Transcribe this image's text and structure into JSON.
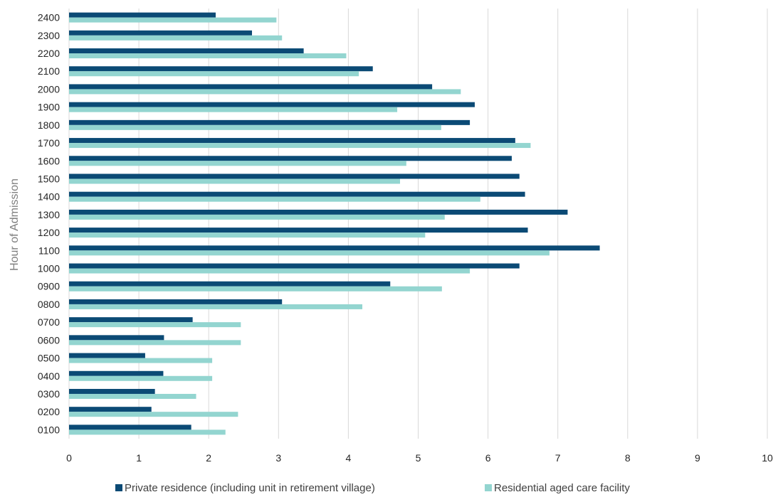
{
  "chart_data": {
    "type": "bar",
    "orientation": "horizontal",
    "title": "",
    "xlabel": "",
    "ylabel": "Hour of Admission",
    "xlim": [
      0,
      10
    ],
    "x_ticks": [
      "0",
      "1",
      "2",
      "3",
      "4",
      "5",
      "6",
      "7",
      "8",
      "9",
      "10"
    ],
    "grid": true,
    "legend_position": "bottom",
    "categories": [
      "0100",
      "0200",
      "0300",
      "0400",
      "0500",
      "0600",
      "0700",
      "0800",
      "0900",
      "1000",
      "1100",
      "1200",
      "1300",
      "1400",
      "1500",
      "1600",
      "1700",
      "1800",
      "1900",
      "2000",
      "2100",
      "2200",
      "2300",
      "2400"
    ],
    "series": [
      {
        "name": "Private residence (including unit in retirement village)",
        "color": "#0b4a75",
        "values": [
          1.75,
          1.18,
          1.23,
          1.35,
          1.09,
          1.36,
          1.77,
          3.05,
          4.6,
          6.45,
          7.6,
          6.57,
          7.14,
          6.53,
          6.45,
          6.34,
          6.39,
          5.74,
          5.81,
          5.2,
          4.35,
          3.36,
          2.62,
          2.1
        ]
      },
      {
        "name": "Residential aged care facility",
        "color": "#93d5d0",
        "values": [
          2.24,
          2.42,
          1.82,
          2.05,
          2.05,
          2.46,
          2.46,
          4.2,
          5.34,
          5.74,
          6.88,
          5.1,
          5.38,
          5.89,
          4.74,
          4.83,
          6.61,
          5.33,
          4.7,
          5.61,
          4.15,
          3.97,
          3.05,
          2.97
        ]
      }
    ]
  }
}
